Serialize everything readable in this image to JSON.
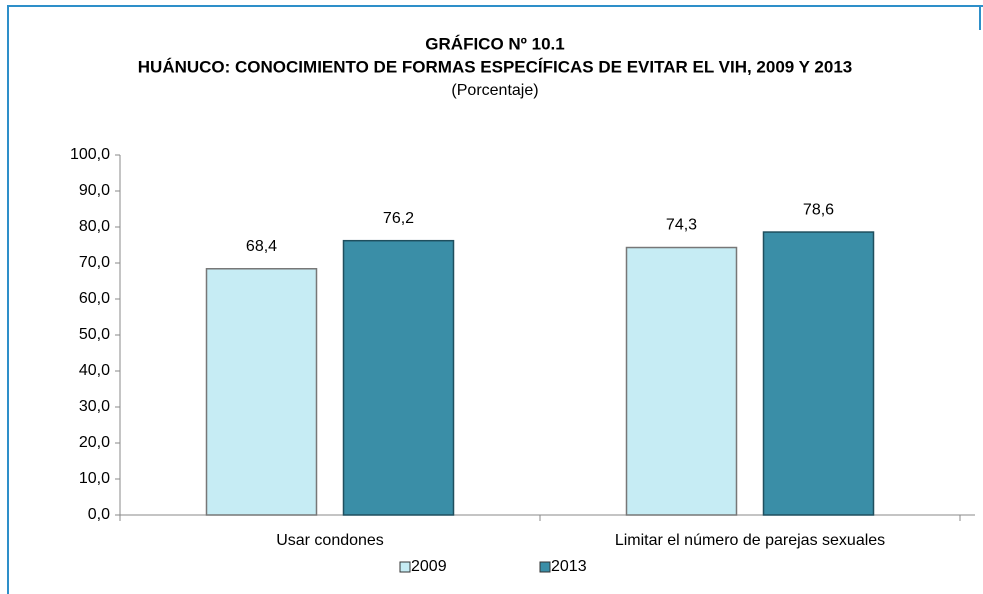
{
  "chart_data": {
    "type": "bar",
    "title": "GRÁFICO Nº 10.1",
    "subtitle": "HUÁNUCO: CONOCIMIENTO DE FORMAS ESPECÍFICAS DE EVITAR EL VIH,  2009 Y 2013",
    "unit_label": "(Porcentaje)",
    "categories": [
      "Usar condones",
      "Limitar el número de parejas sexuales"
    ],
    "series": [
      {
        "name": "2009",
        "color": "#c6ecf4",
        "values": [
          68.4,
          74.3
        ],
        "value_labels": [
          "68,4",
          "74,3"
        ]
      },
      {
        "name": "2013",
        "color": "#3a8ea7",
        "values": [
          76.2,
          78.6
        ],
        "value_labels": [
          "76,2",
          "78,6"
        ]
      }
    ],
    "ylim": [
      0,
      100
    ],
    "yticks": [
      {
        "value": 0,
        "label": "0,0"
      },
      {
        "value": 10,
        "label": "10,0"
      },
      {
        "value": 20,
        "label": "20,0"
      },
      {
        "value": 30,
        "label": "30,0"
      },
      {
        "value": 40,
        "label": "40,0"
      },
      {
        "value": 50,
        "label": "50,0"
      },
      {
        "value": 60,
        "label": "60,0"
      },
      {
        "value": 70,
        "label": "70,0"
      },
      {
        "value": 80,
        "label": "80,0"
      },
      {
        "value": 90,
        "label": "90,0"
      },
      {
        "value": 100,
        "label": "100,0"
      }
    ],
    "legend": "bottom"
  }
}
